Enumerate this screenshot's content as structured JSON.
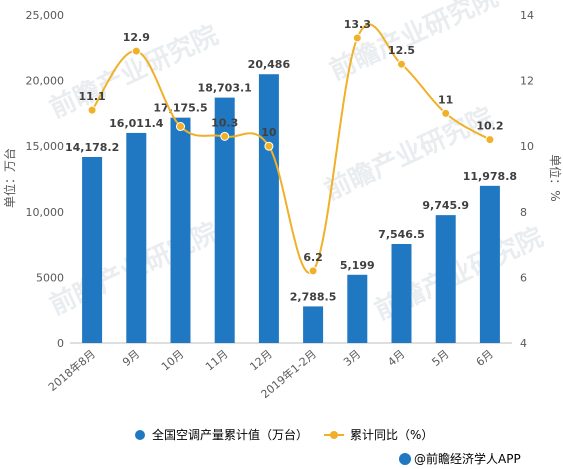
{
  "chart_data": {
    "type": "bar",
    "categories": [
      "2018年8月",
      "9月",
      "10月",
      "11月",
      "12月",
      "2019年1-2月",
      "3月",
      "4月",
      "5月",
      "6月"
    ],
    "series": [
      {
        "name": "全国空调产量累计值（万台）",
        "type": "bar",
        "axis": "left",
        "values": [
          14178.2,
          16011.4,
          17175.5,
          18703.1,
          20486,
          2788.5,
          5199,
          7546.5,
          9745.9,
          11978.8
        ],
        "labels": [
          "14,178.2",
          "16,011.4",
          "17,175.5",
          "18,703.1",
          "20,486",
          "2,788.5",
          "5,199",
          "7,546.5",
          "9,745.9",
          "11,978.8"
        ],
        "color": "#1f78c1"
      },
      {
        "name": "累计同比（%）",
        "type": "line",
        "axis": "right",
        "values": [
          11.1,
          12.9,
          10.6,
          10.3,
          10,
          6.2,
          13.3,
          12.5,
          11,
          10.2
        ],
        "labels": [
          "11.1",
          "12.9",
          "",
          "10.3",
          "10",
          "6.2",
          "13.3",
          "12.5",
          "11",
          "10.2"
        ],
        "color": "#f0b129"
      }
    ],
    "ylabel": "单位：万台",
    "y2label": "单位：%",
    "ylim": [
      0,
      25000
    ],
    "y2lim": [
      4,
      14
    ],
    "yticks": [
      "0",
      "5000",
      "10,000",
      "15,000",
      "20,000",
      "25,000"
    ],
    "y2ticks": [
      "4",
      "6",
      "8",
      "10",
      "12",
      "14"
    ],
    "grid": false,
    "legend_position": "bottom"
  },
  "source": "@前瞻经济学人APP",
  "watermark": "前瞻产业研究院"
}
